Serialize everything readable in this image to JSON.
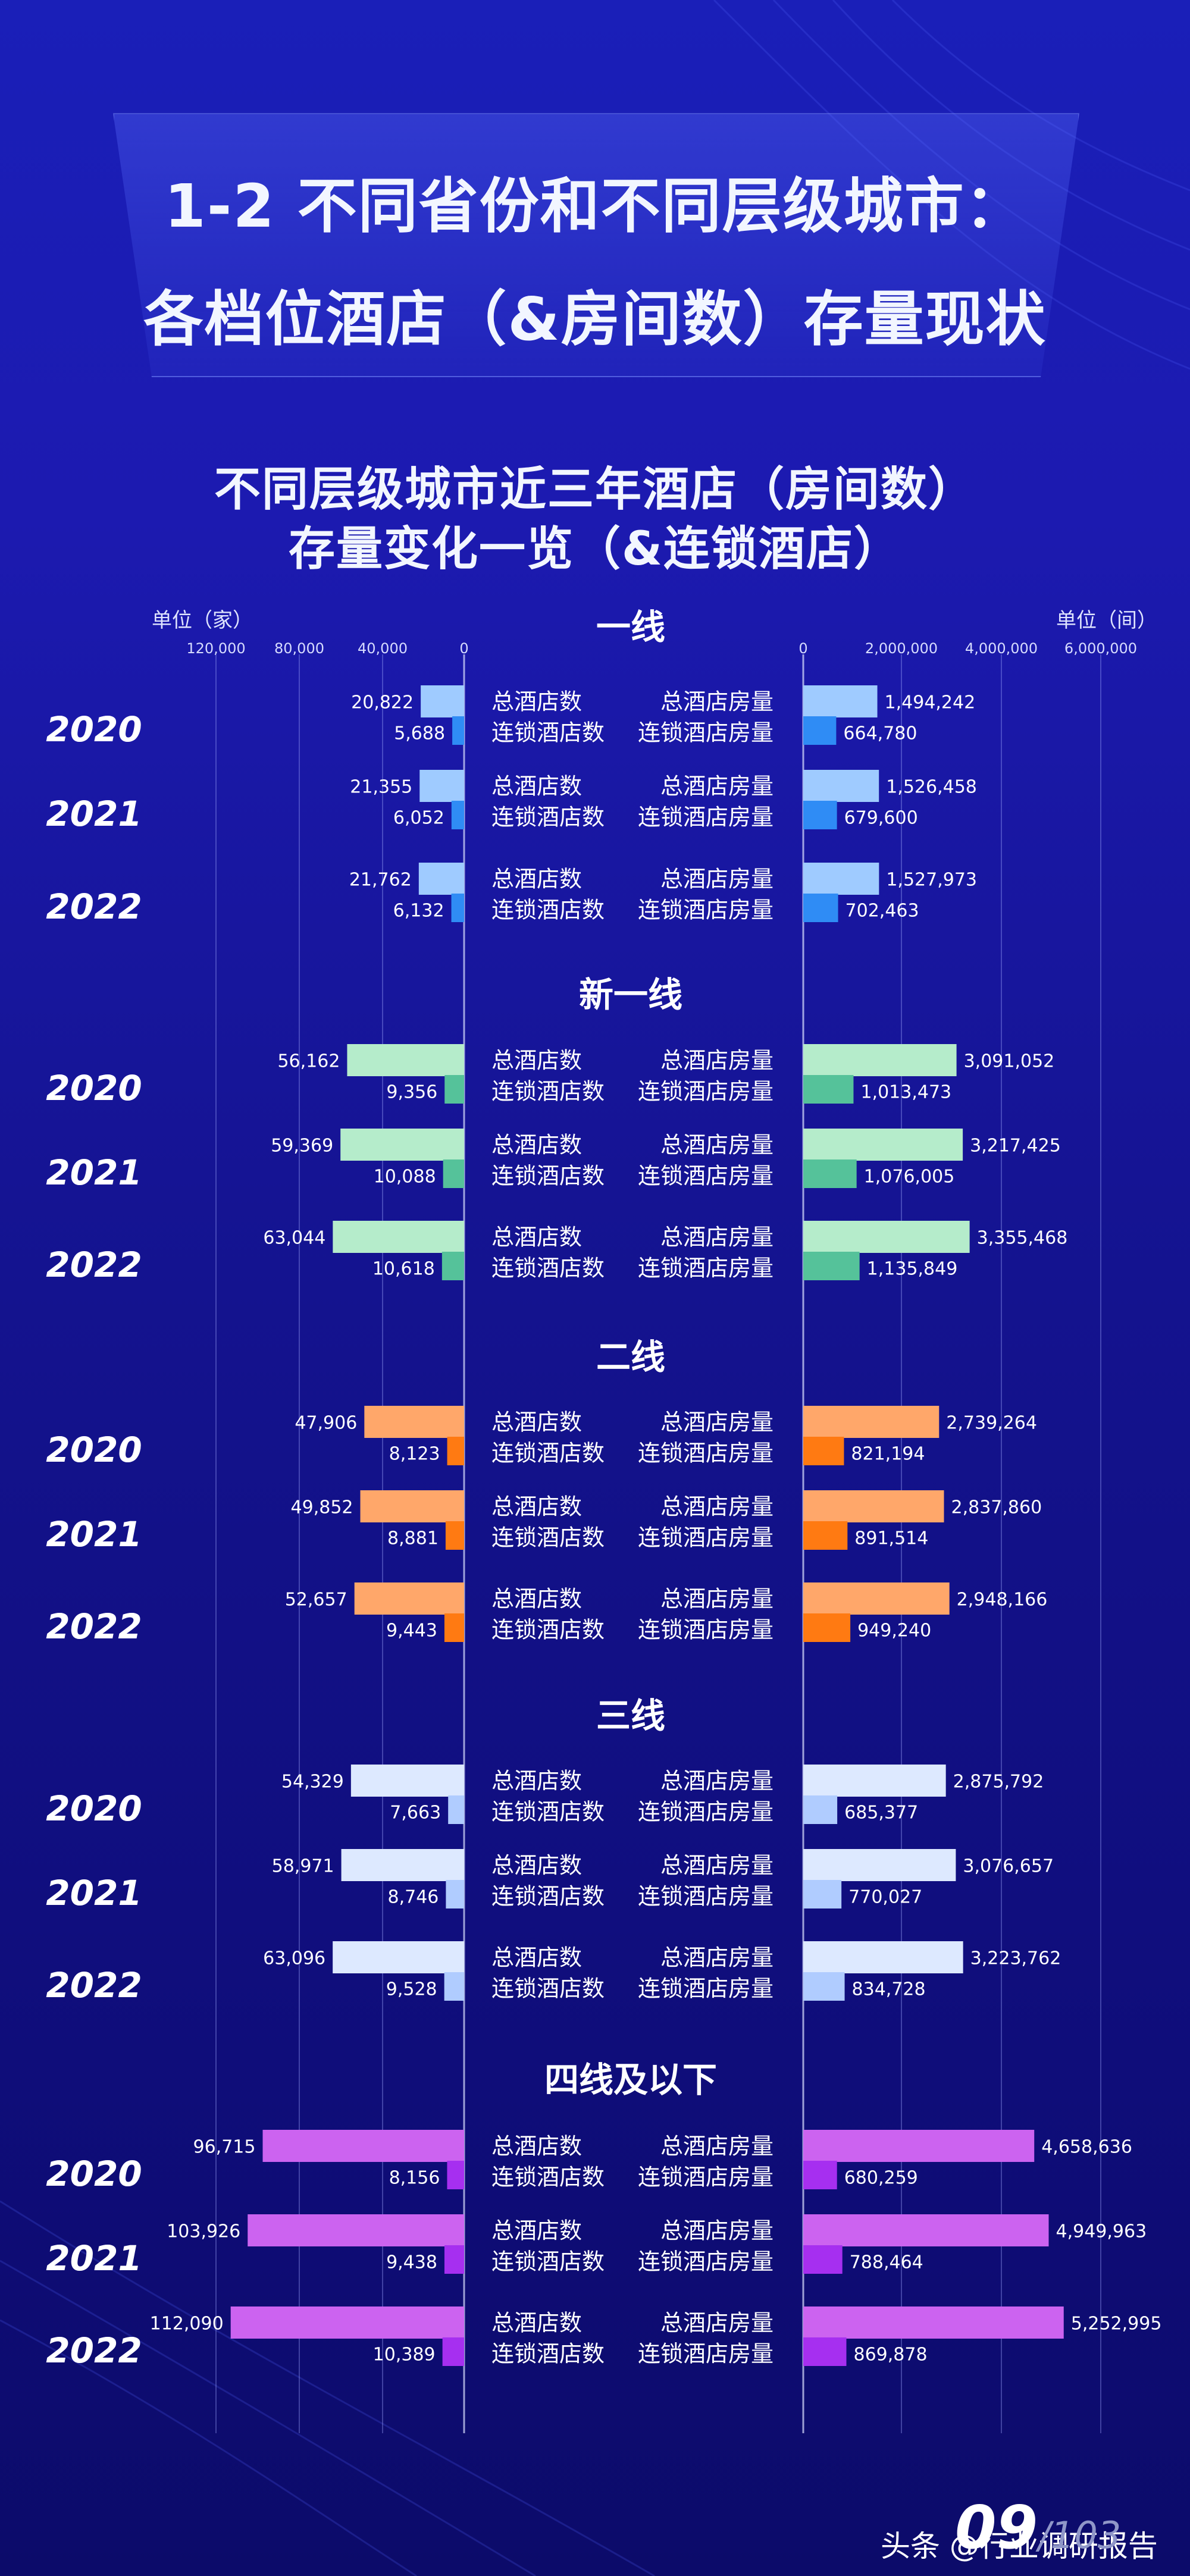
{
  "title": {
    "line1": "1-2 不同省份和不同层级城市：",
    "line2": "各档位酒店（&房间数）存量现状"
  },
  "subtitle": {
    "line1": "不同层级城市近三年酒店（房间数）",
    "line2": "存量变化一览（&连锁酒店）"
  },
  "footer": {
    "page": "09",
    "total": "/103",
    "watermark": "头条 @行业调研报告"
  },
  "colors": {
    "tier1_main": "#9fcbff",
    "tier1_chain": "#2f8cf5",
    "newtier1_main": "#b5eccb",
    "newtier1_chain": "#55c29a",
    "tier2_main": "#ffa76a",
    "tier2_chain": "#ff7a12",
    "tier3_main": "#dde9ff",
    "tier3_chain": "#b0ccff",
    "tier4_main": "#cc63f0",
    "tier4_chain": "#a62ff0"
  },
  "chart_data": {
    "type": "bar",
    "layout": "butterfly",
    "title": "不同层级城市近三年酒店（房间数）存量变化一览（&连锁酒店）",
    "left_axis": {
      "unit": "单位（家）",
      "ticks": [
        "120,000",
        "80,000",
        "40,000",
        "0"
      ],
      "range": [
        0,
        120000
      ]
    },
    "right_axis": {
      "unit": "单位（间）",
      "ticks": [
        "0",
        "2,000,000",
        "4,000,000",
        "6,000,000"
      ],
      "range": [
        0,
        6000000
      ]
    },
    "labels": {
      "total_hotels": "总酒店数",
      "chain_hotels": "连锁酒店数",
      "total_rooms": "总酒店房量",
      "chain_rooms": "连锁酒店房量"
    },
    "groups": [
      {
        "name": "一线",
        "color_key": "tier1",
        "years": [
          {
            "year": "2020",
            "total_hotels": 20822,
            "chain_hotels": 5688,
            "total_rooms": 1494242,
            "chain_rooms": 664780
          },
          {
            "year": "2021",
            "total_hotels": 21355,
            "chain_hotels": 6052,
            "total_rooms": 1526458,
            "chain_rooms": 679600
          },
          {
            "year": "2022",
            "total_hotels": 21762,
            "chain_hotels": 6132,
            "total_rooms": 1527973,
            "chain_rooms": 702463
          }
        ]
      },
      {
        "name": "新一线",
        "color_key": "newtier1",
        "years": [
          {
            "year": "2020",
            "total_hotels": 56162,
            "chain_hotels": 9356,
            "total_rooms": 3091052,
            "chain_rooms": 1013473
          },
          {
            "year": "2021",
            "total_hotels": 59369,
            "chain_hotels": 10088,
            "total_rooms": 3217425,
            "chain_rooms": 1076005
          },
          {
            "year": "2022",
            "total_hotels": 63044,
            "chain_hotels": 10618,
            "total_rooms": 3355468,
            "chain_rooms": 1135849
          }
        ]
      },
      {
        "name": "二线",
        "color_key": "tier2",
        "years": [
          {
            "year": "2020",
            "total_hotels": 47906,
            "chain_hotels": 8123,
            "total_rooms": 2739264,
            "chain_rooms": 821194
          },
          {
            "year": "2021",
            "total_hotels": 49852,
            "chain_hotels": 8881,
            "total_rooms": 2837860,
            "chain_rooms": 891514
          },
          {
            "year": "2022",
            "total_hotels": 52657,
            "chain_hotels": 9443,
            "total_rooms": 2948166,
            "chain_rooms": 949240
          }
        ]
      },
      {
        "name": "三线",
        "color_key": "tier3",
        "years": [
          {
            "year": "2020",
            "total_hotels": 54329,
            "chain_hotels": 7663,
            "total_rooms": 2875792,
            "chain_rooms": 685377
          },
          {
            "year": "2021",
            "total_hotels": 58971,
            "chain_hotels": 8746,
            "total_rooms": 3076657,
            "chain_rooms": 770027
          },
          {
            "year": "2022",
            "total_hotels": 63096,
            "chain_hotels": 9528,
            "total_rooms": 3223762,
            "chain_rooms": 834728
          }
        ]
      },
      {
        "name": "四线及以下",
        "color_key": "tier4",
        "years": [
          {
            "year": "2020",
            "total_hotels": 96715,
            "chain_hotels": 8156,
            "total_rooms": 4658636,
            "chain_rooms": 680259
          },
          {
            "year": "2021",
            "total_hotels": 103926,
            "chain_hotels": 9438,
            "total_rooms": 4949963,
            "chain_rooms": 788464
          },
          {
            "year": "2022",
            "total_hotels": 112090,
            "chain_hotels": 10389,
            "total_rooms": 5252995,
            "chain_rooms": 869878
          }
        ]
      }
    ]
  }
}
